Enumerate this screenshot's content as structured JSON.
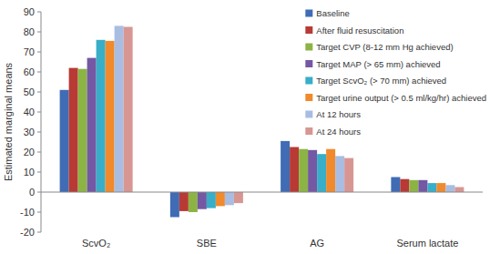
{
  "chart_data": {
    "type": "bar",
    "y_label": "Estimated marginal means",
    "categories": [
      "ScvO₂",
      "SBE",
      "AG",
      "Serum lactate"
    ],
    "series": [
      {
        "name": "Baseline",
        "color": "#3f6cb5",
        "values": [
          51,
          -12.5,
          25.5,
          7.5
        ]
      },
      {
        "name": "After fluid resuscitation",
        "color": "#b83a35",
        "values": [
          62,
          -9.5,
          22.5,
          6.5
        ]
      },
      {
        "name": "Target CVP (8-12 mm Hg achieved)",
        "color": "#8cb445",
        "values": [
          61.5,
          -10,
          21.5,
          6
        ]
      },
      {
        "name": "Target MAP (> 65 mm) achieved",
        "color": "#7458a3",
        "values": [
          67,
          -8.5,
          21,
          6
        ]
      },
      {
        "name": "Target ScvO₂ (> 70 mm) achieved",
        "color": "#38aec8",
        "values": [
          76,
          -8,
          19,
          4.5
        ]
      },
      {
        "name": "Target urine output (> 0.5 ml/kg/hr) achieved",
        "color": "#f08a2c",
        "values": [
          75.5,
          -7,
          21.5,
          4.5
        ]
      },
      {
        "name": "At 12 hours",
        "color": "#a9bde2",
        "values": [
          83,
          -6.5,
          18,
          3.5
        ]
      },
      {
        "name": "At 24 hours",
        "color": "#d89693",
        "values": [
          82.5,
          -5.5,
          17,
          2.5
        ]
      }
    ],
    "ylim": [
      -20,
      90
    ],
    "yticks": [
      -20,
      -10,
      0,
      10,
      20,
      30,
      40,
      50,
      60,
      70,
      80,
      90
    ],
    "grid": false,
    "legend": "top-right"
  }
}
